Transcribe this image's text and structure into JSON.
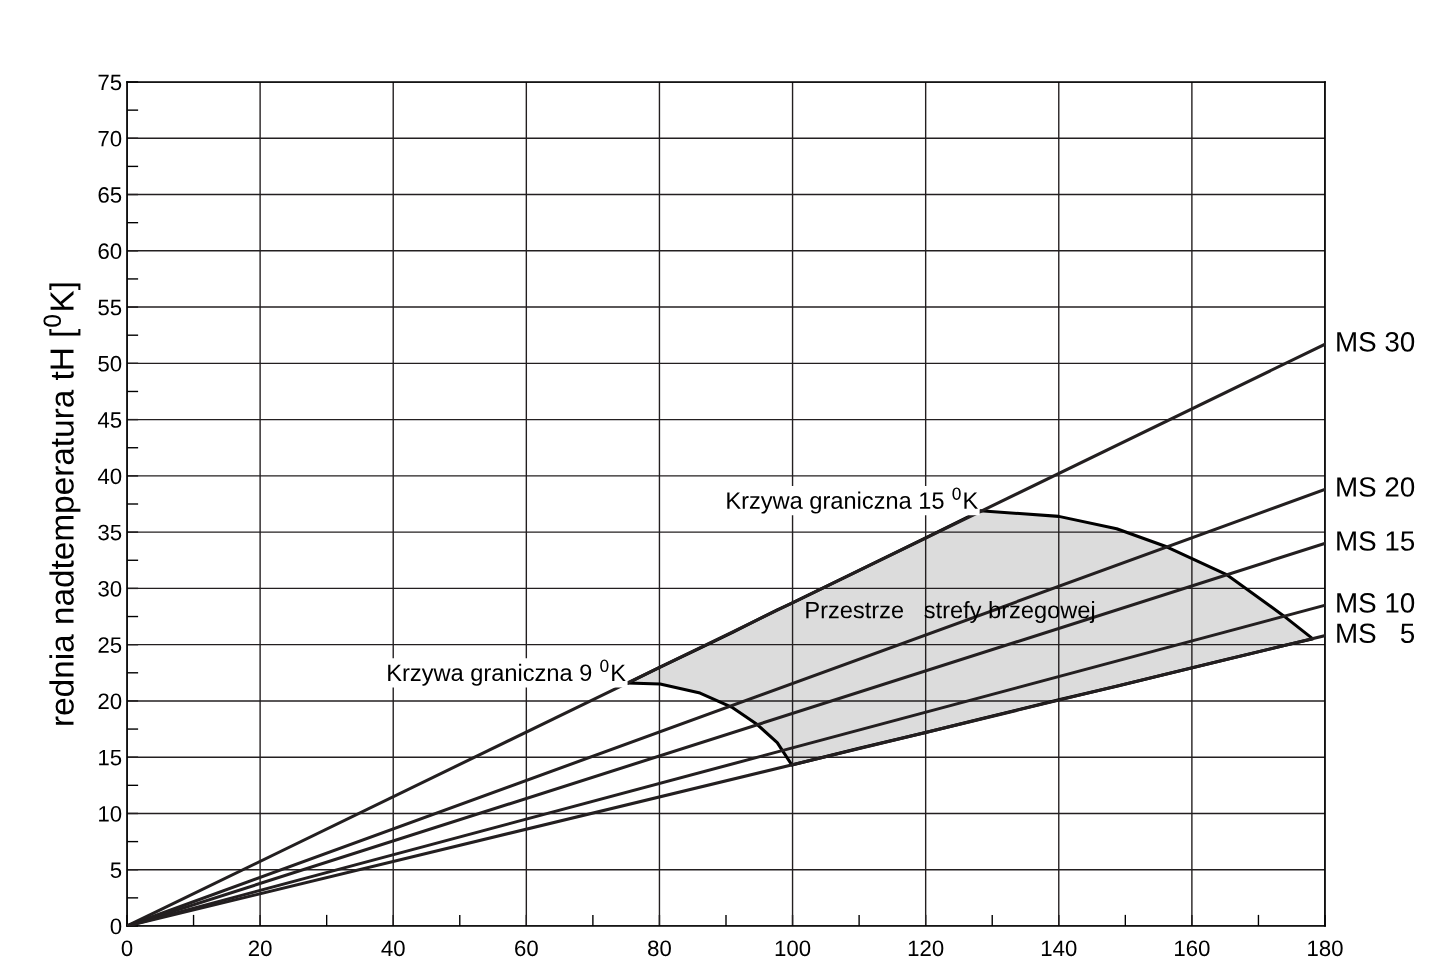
{
  "chart_data": {
    "type": "line",
    "ylabel": "rednia nadtemperatura tH [$^{0}$K]",
    "xlim": [
      0,
      180
    ],
    "ylim": [
      0,
      75
    ],
    "xticks": [
      0,
      {
        "value": 10,
        "label": null
      },
      20,
      {
        "value": 30,
        "label": null
      },
      40,
      {
        "value": 50,
        "label": null
      },
      60,
      {
        "value": 70,
        "label": null
      },
      80,
      {
        "value": 90,
        "label": null
      },
      100,
      {
        "value": 110,
        "label": null
      },
      120,
      {
        "value": 130,
        "label": null
      },
      140,
      {
        "value": 150,
        "label": null
      },
      160,
      {
        "value": 170,
        "label": null
      },
      180
    ],
    "yticks": [
      0,
      {
        "value": 2.5,
        "label": null
      },
      5,
      {
        "value": 7.5,
        "label": null
      },
      10,
      {
        "value": 12.5,
        "label": null
      },
      15,
      {
        "value": 17.5,
        "label": null
      },
      20,
      {
        "value": 22.5,
        "label": null
      },
      25,
      {
        "value": 27.5,
        "label": null
      },
      30,
      {
        "value": 32.5,
        "label": null
      },
      35,
      {
        "value": 37.5,
        "label": null
      },
      40,
      {
        "value": 42.5,
        "label": null
      },
      45,
      {
        "value": 47.5,
        "label": null
      },
      50,
      {
        "value": 52.5,
        "label": null
      },
      55,
      {
        "value": 57.5,
        "label": null
      },
      60,
      {
        "value": 62.5,
        "label": null
      },
      65,
      {
        "value": 67.5,
        "label": null
      },
      70,
      {
        "value": 72.5,
        "label": null
      },
      75
    ],
    "grid": true,
    "series": [
      {
        "color": "#000000",
        "x": [
          75.3,
          80.1,
          86.1,
          91.0,
          94.7,
          97.7,
          99.9,
          110,
          120,
          128.2,
          140,
          148.7,
          156.2,
          165.3,
          173.7,
          178.0
        ],
        "values": [
          21.6,
          23.0,
          24.7,
          26.1,
          27.2,
          28.1,
          28.7,
          31.6,
          34.5,
          36.9,
          36.4,
          35.3,
          33.7,
          31.2,
          27.6,
          25.6
        ],
        "upper": [
          21.6,
          23.0,
          24.7,
          26.1,
          27.2,
          28.1,
          28.7,
          31.6,
          34.5,
          36.9,
          36.4,
          35.3,
          33.7,
          31.2,
          27.6,
          25.6
        ],
        "lower": [
          21.6,
          21.5,
          20.7,
          19.4,
          17.9,
          16.3,
          14.3,
          15.8,
          17.2,
          18.4,
          20.1,
          21.3,
          22.4,
          23.7,
          24.9,
          25.5
        ]
      },
      {
        "color": "#000000",
        "x": [
          75.3,
          80.1,
          86.1,
          91.0,
          94.7,
          97.7,
          99.9,
          110,
          120,
          128.2,
          140,
          148.7,
          156.2,
          165.3,
          173.7,
          178.0
        ],
        "values": [
          21.6,
          21.5,
          20.7,
          19.4,
          17.9,
          16.3,
          14.3,
          15.8,
          17.2,
          18.4,
          20.1,
          21.3,
          22.4,
          23.7,
          24.9,
          25.5
        ]
      },
      {
        "name": "MS 30",
        "color": "#231f20",
        "x": [
          0,
          180
        ],
        "values": [
          0,
          51.7
        ]
      },
      {
        "name": "MS 20",
        "color": "#231f20",
        "x": [
          0,
          180
        ],
        "values": [
          0,
          38.8
        ]
      },
      {
        "name": "MS 15",
        "color": "#231f20",
        "x": [
          0,
          180
        ],
        "values": [
          0,
          34.0
        ]
      },
      {
        "name": "MS 10",
        "color": "#231f20",
        "x": [
          0,
          180
        ],
        "values": [
          0,
          28.5
        ]
      },
      {
        "name": "MS   5",
        "color": "#231f20",
        "x": [
          0,
          180
        ],
        "values": [
          0,
          25.8
        ]
      }
    ],
    "annotations": [
      {
        "text": "Krzywa graniczna 9 $^{0}$K",
        "x": 75.3,
        "y": 21.6
      },
      {
        "text": "Krzywa graniczna 15 $^{0}$K",
        "x": 128.2,
        "y": 36.9
      },
      "Przestrze   strefy brzegowej"
    ]
  }
}
